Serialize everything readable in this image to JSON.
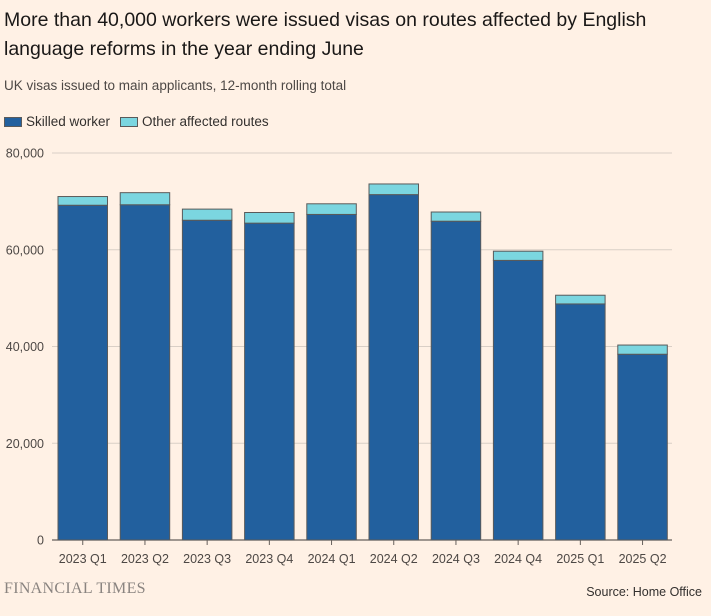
{
  "title": "More than 40,000 workers were issued visas on routes affected by English language reforms in the year ending June",
  "subtitle": "UK visas issued to main applicants, 12-month rolling total",
  "legend": {
    "skilled": "Skilled worker",
    "other": "Other affected routes"
  },
  "colors": {
    "skilled": "#22609e",
    "other": "#7bd6e0",
    "background": "#fff1e5",
    "gridline": "#d9cfc6",
    "bar_stroke": "#5a5a5a"
  },
  "footer": {
    "brand": "FINANCIAL TIMES",
    "source": "Source: Home Office"
  },
  "chart_data": {
    "type": "bar",
    "stacked": true,
    "title": "More than 40,000 workers were issued visas on routes affected by English language reforms in the year ending June",
    "xlabel": "",
    "ylabel": "",
    "ylim": [
      0,
      80000
    ],
    "yticks": [
      0,
      20000,
      40000,
      60000,
      80000
    ],
    "ytick_labels": [
      "0",
      "20,000",
      "40,000",
      "60,000",
      "80,000"
    ],
    "categories": [
      "2023 Q1",
      "2023 Q2",
      "2023 Q3",
      "2023 Q4",
      "2024 Q1",
      "2024 Q2",
      "2024 Q3",
      "2024 Q4",
      "2025 Q1",
      "2025 Q2"
    ],
    "series": [
      {
        "name": "Skilled worker",
        "values": [
          69200,
          69300,
          66100,
          65500,
          67300,
          71400,
          65900,
          57800,
          48800,
          38400
        ]
      },
      {
        "name": "Other affected routes",
        "values": [
          1800,
          2500,
          2300,
          2200,
          2200,
          2200,
          1900,
          1900,
          1800,
          1900
        ]
      }
    ],
    "legend_position": "top-left",
    "grid": true
  }
}
